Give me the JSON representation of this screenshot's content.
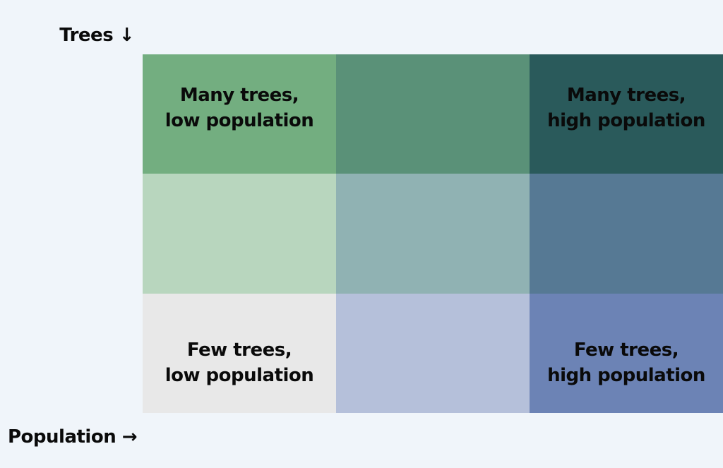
{
  "axes": {
    "y_label": "Trees ↓",
    "x_label": "Population →"
  },
  "grid": {
    "rows": [
      [
        {
          "label": "Many trees,\nlow population",
          "color": "#73ae80"
        },
        {
          "label": "",
          "color": "#5a9178"
        },
        {
          "label": "Many trees,\nhigh population",
          "color": "#2a5a5b"
        }
      ],
      [
        {
          "label": "",
          "color": "#b8d6be"
        },
        {
          "label": "",
          "color": "#90b2b3"
        },
        {
          "label": "",
          "color": "#567994"
        }
      ],
      [
        {
          "label": "Few trees,\nlow population",
          "color": "#e8e8e8"
        },
        {
          "label": "",
          "color": "#b5c0da"
        },
        {
          "label": "Few trees,\nhigh population",
          "color": "#6c83b5"
        }
      ]
    ]
  }
}
